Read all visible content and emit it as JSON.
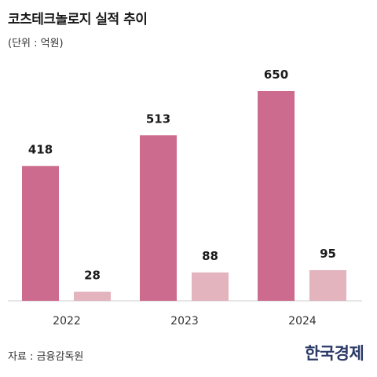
{
  "header": {
    "title": "코츠테크놀로지 실적 추이",
    "unit": "(단위 : 억원)"
  },
  "footer": {
    "source": "자료 : 금융감독원",
    "logo_text": "한국경제"
  },
  "colors": {
    "primary_bar": "#cc6b8d",
    "secondary_bar": "#e3b3be",
    "axis": "#cccccc"
  },
  "chart_data": {
    "type": "bar",
    "categories": [
      "2022",
      "2023",
      "2024"
    ],
    "series": [
      {
        "values": [
          418,
          513,
          650
        ]
      },
      {
        "values": [
          28,
          88,
          95
        ]
      }
    ],
    "title": "코츠테크놀로지 실적 추이",
    "ylabel": "(단위 : 억원)",
    "ylim": [
      0,
      700
    ],
    "grid": false,
    "legend": "none"
  }
}
